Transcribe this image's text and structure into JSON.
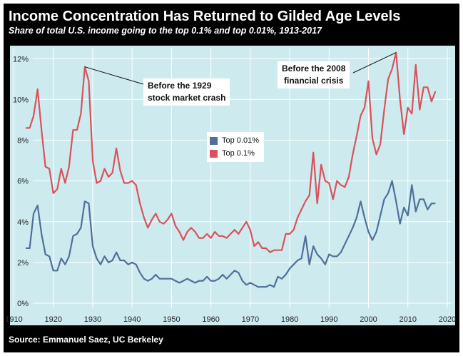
{
  "title": "Income Concentration Has Returned to Gilded Age Levels",
  "subtitle": "Share of total U.S. income going to the top 0.1% and top 0.01%, 1913-2017",
  "source": "Source: Emmanuel Saez, UC Berkeley",
  "annotations": {
    "crash_1929": [
      "Before the 1929",
      "stock market crash"
    ],
    "crisis_2008": [
      "Before the 2008",
      "financial crisis"
    ]
  },
  "colors": {
    "top_0_01": "#4f6f9a",
    "top_0_1": "#d9525a",
    "plot_bg": "#cdebef"
  },
  "chart_data": {
    "type": "line",
    "title": "Income Concentration Has Returned to Gilded Age Levels",
    "xlabel": "",
    "ylabel": "",
    "xlim": [
      1909,
      2022
    ],
    "ylim": [
      0,
      12.5
    ],
    "x_ticks": [
      1910,
      1920,
      1930,
      1940,
      1950,
      1960,
      1970,
      1980,
      1990,
      2000,
      2010,
      2020
    ],
    "y_ticks": [
      0,
      2,
      4,
      6,
      8,
      10,
      12
    ],
    "y_tick_labels": [
      "0%",
      "2%",
      "4%",
      "6%",
      "8%",
      "10%",
      "12%"
    ],
    "grid": true,
    "legend": "upper-center",
    "x": [
      1913,
      1914,
      1915,
      1916,
      1917,
      1918,
      1919,
      1920,
      1921,
      1922,
      1923,
      1924,
      1925,
      1926,
      1927,
      1928,
      1929,
      1930,
      1931,
      1932,
      1933,
      1934,
      1935,
      1936,
      1937,
      1938,
      1939,
      1940,
      1941,
      1942,
      1943,
      1944,
      1945,
      1946,
      1947,
      1948,
      1949,
      1950,
      1951,
      1952,
      1953,
      1954,
      1955,
      1956,
      1957,
      1958,
      1959,
      1960,
      1961,
      1962,
      1963,
      1964,
      1965,
      1966,
      1967,
      1968,
      1969,
      1970,
      1971,
      1972,
      1973,
      1974,
      1975,
      1976,
      1977,
      1978,
      1979,
      1980,
      1981,
      1982,
      1983,
      1984,
      1985,
      1986,
      1987,
      1988,
      1989,
      1990,
      1991,
      1992,
      1993,
      1994,
      1995,
      1996,
      1997,
      1998,
      1999,
      2000,
      2001,
      2002,
      2003,
      2004,
      2005,
      2006,
      2007,
      2008,
      2009,
      2010,
      2011,
      2012,
      2013,
      2014,
      2015,
      2016,
      2017
    ],
    "series": [
      {
        "name": "Top 0.01%",
        "color": "#4f6f9a",
        "values": [
          2.7,
          2.7,
          4.4,
          4.8,
          3.4,
          2.4,
          2.3,
          1.6,
          1.6,
          2.2,
          1.9,
          2.3,
          3.3,
          3.4,
          3.7,
          5.0,
          4.9,
          2.8,
          2.2,
          1.9,
          2.3,
          2.0,
          2.1,
          2.5,
          2.1,
          2.1,
          1.9,
          2.0,
          1.9,
          1.5,
          1.2,
          1.1,
          1.2,
          1.4,
          1.2,
          1.2,
          1.2,
          1.2,
          1.1,
          1.0,
          1.1,
          1.2,
          1.1,
          1.0,
          1.1,
          1.1,
          1.3,
          1.1,
          1.1,
          1.2,
          1.4,
          1.2,
          1.4,
          1.6,
          1.5,
          1.1,
          0.9,
          1.0,
          0.9,
          0.8,
          0.8,
          0.8,
          0.9,
          0.8,
          1.3,
          1.2,
          1.4,
          1.7,
          1.9,
          2.1,
          2.2,
          3.3,
          1.9,
          2.8,
          2.4,
          2.2,
          1.9,
          2.4,
          2.3,
          2.3,
          2.5,
          2.9,
          3.3,
          3.7,
          4.2,
          5.0,
          4.2,
          3.5,
          3.1,
          3.5,
          4.3,
          5.1,
          5.4,
          6.0,
          5.0,
          3.9,
          4.7,
          4.3,
          5.8,
          4.5,
          5.1,
          5.1,
          4.6,
          4.9,
          4.9
        ]
      },
      {
        "name": "Top 0.1%",
        "color": "#d9525a",
        "values": [
          8.6,
          8.6,
          9.2,
          10.5,
          8.5,
          6.7,
          6.6,
          5.4,
          5.6,
          6.6,
          5.9,
          6.7,
          8.5,
          8.5,
          9.3,
          11.6,
          10.9,
          7.0,
          5.9,
          6.0,
          6.6,
          6.2,
          6.4,
          7.6,
          6.5,
          5.9,
          5.9,
          6.0,
          5.8,
          4.9,
          4.2,
          3.7,
          4.1,
          4.4,
          4.0,
          3.9,
          4.1,
          4.4,
          3.8,
          3.5,
          3.1,
          3.5,
          3.7,
          3.5,
          3.2,
          3.2,
          3.4,
          3.2,
          3.5,
          3.3,
          3.3,
          3.2,
          3.4,
          3.6,
          3.4,
          3.7,
          4.0,
          3.6,
          2.8,
          3.0,
          2.7,
          2.7,
          2.5,
          2.6,
          2.6,
          2.6,
          3.4,
          3.4,
          3.6,
          4.2,
          4.6,
          5.0,
          5.3,
          7.4,
          4.9,
          6.8,
          6.0,
          5.9,
          5.1,
          6.0,
          5.8,
          5.7,
          6.2,
          7.3,
          8.2,
          9.2,
          9.6,
          10.9,
          8.1,
          7.3,
          7.8,
          9.5,
          11.0,
          11.5,
          12.3,
          10.0,
          8.3,
          9.6,
          9.3,
          11.7,
          9.5,
          10.6,
          10.6,
          9.9,
          10.4
        ]
      }
    ]
  }
}
